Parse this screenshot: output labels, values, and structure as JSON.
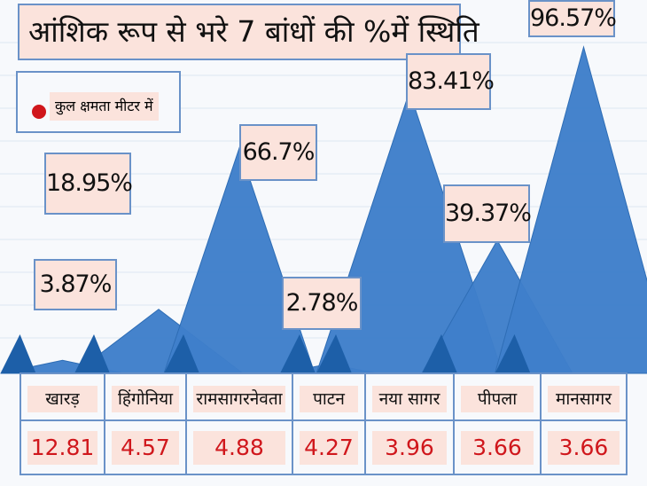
{
  "title": "आंशिक रूप से भरे 7 बांधों की %में स्थिति",
  "legend": {
    "label": "कुल क्षमता मीटर में"
  },
  "colors": {
    "peak": "#3f7fca",
    "peak_dark": "#1d5fa8",
    "label_bg": "#fbe3dc",
    "border": "#6a92c8",
    "value_text": "#d0171c",
    "legend_dot": "#d0171c",
    "grid": "#dde6f2"
  },
  "chart_data": {
    "type": "area",
    "title": "आंशिक रूप से भरे 7 बांधों की %में स्थिति",
    "categories": [
      "खारड़",
      "हिंगोनिया",
      "रामसागरनेवता",
      "पाटन",
      "नया सागर",
      "पीपला",
      "मानसागर"
    ],
    "series": [
      {
        "values": [
          3.87,
          18.95,
          66.7,
          2.78,
          83.41,
          39.37,
          96.57
        ],
        "labels": [
          "3.87%",
          "18.95%",
          "66.7%",
          "2.78%",
          "83.41%",
          "39.37%",
          "96.57%"
        ]
      }
    ],
    "capacity": [
      12.81,
      4.57,
      4.88,
      4.27,
      3.96,
      3.66,
      3.66
    ],
    "capacity_labels": [
      "12.81",
      "4.57",
      "4.88",
      "4.27",
      "3.96",
      "3.66",
      "3.66"
    ],
    "legend_position": "top-left",
    "grid": true
  }
}
